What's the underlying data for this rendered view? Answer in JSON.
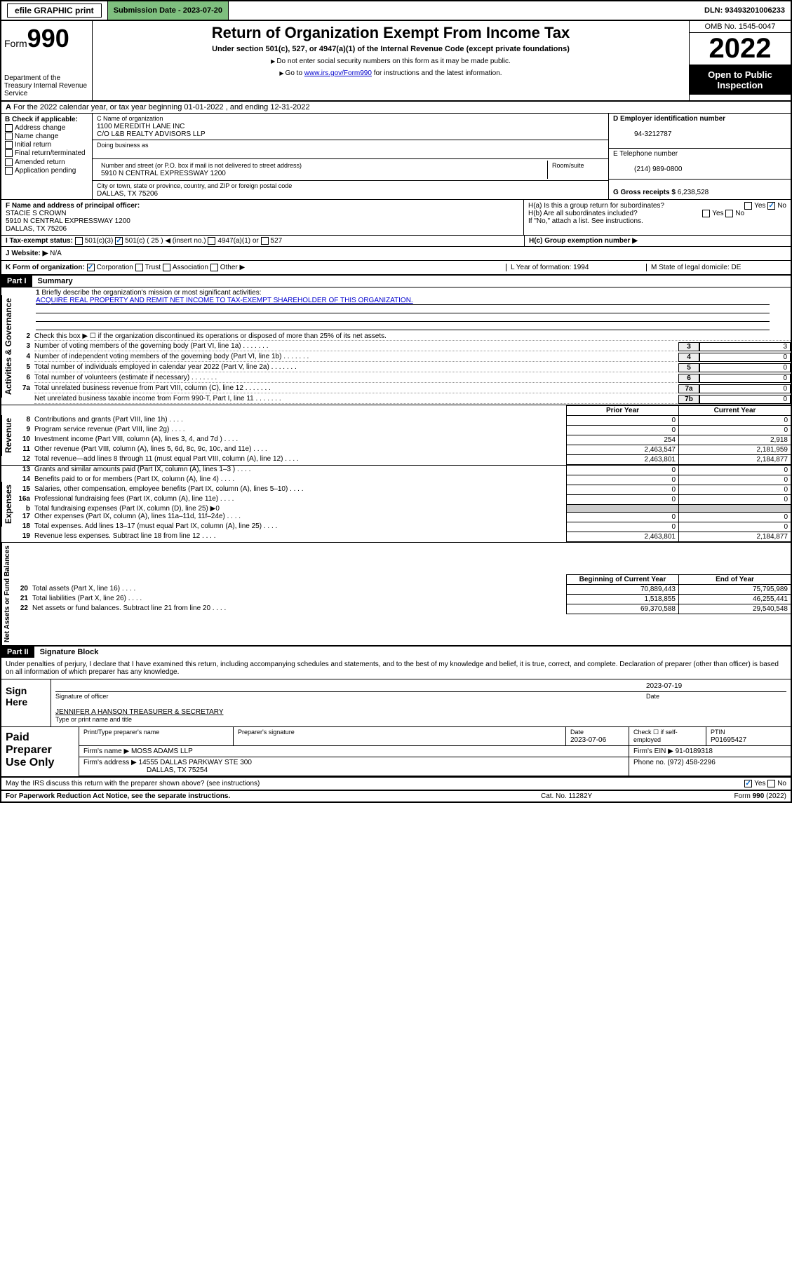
{
  "topbar": {
    "efile": "efile GRAPHIC print",
    "submission": "Submission Date - 2023-07-20",
    "dln": "DLN: 93493201006233"
  },
  "header": {
    "form": "Form",
    "form_num": "990",
    "dept": "Department of the Treasury\nInternal Revenue Service",
    "title": "Return of Organization Exempt From Income Tax",
    "sub": "Under section 501(c), 527, or 4947(a)(1) of the Internal Revenue Code (except private foundations)",
    "note1": "Do not enter social security numbers on this form as it may be made public.",
    "note2_pre": "Go to ",
    "note2_link": "www.irs.gov/Form990",
    "note2_post": " for instructions and the latest information.",
    "omb": "OMB No. 1545-0047",
    "year": "2022",
    "inspect": "Open to Public Inspection"
  },
  "line_a": "For the 2022 calendar year, or tax year beginning 01-01-2022   , and ending 12-31-2022",
  "section_b": {
    "label": "B Check if applicable:",
    "opts": [
      "Address change",
      "Name change",
      "Initial return",
      "Final return/terminated",
      "Amended return",
      "Application pending"
    ]
  },
  "section_c": {
    "name_lbl": "C Name of organization",
    "name1": "1100 MEREDITH LANE INC",
    "name2": "C/O L&B REALTY ADVISORS LLP",
    "dba_lbl": "Doing business as",
    "addr_lbl": "Number and street (or P.O. box if mail is not delivered to street address)",
    "room_lbl": "Room/suite",
    "addr": "5910 N CENTRAL EXPRESSWAY 1200",
    "city_lbl": "City or town, state or province, country, and ZIP or foreign postal code",
    "city": "DALLAS, TX  75206"
  },
  "section_d": {
    "label": "D Employer identification number",
    "val": "94-3212787"
  },
  "section_e": {
    "label": "E Telephone number",
    "val": "(214) 989-0800"
  },
  "section_g": {
    "label": "G Gross receipts $",
    "val": "6,238,528"
  },
  "section_f": {
    "label": "F Name and address of principal officer:",
    "name": "STACIE S CROWN",
    "addr1": "5910 N CENTRAL EXPRESSWAY 1200",
    "addr2": "DALLAS, TX  75206"
  },
  "section_h": {
    "ha": "H(a)  Is this a group return for subordinates?",
    "hb": "H(b)  Are all subordinates included?",
    "hb_note": "If \"No,\" attach a list. See instructions.",
    "hc": "H(c)  Group exemption number ▶",
    "yes": "Yes",
    "no": "No"
  },
  "status": {
    "label": "I   Tax-exempt status:",
    "o1": "501(c)(3)",
    "o2": "501(c) ( 25 ) ◀ (insert no.)",
    "o3": "4947(a)(1) or",
    "o4": "527"
  },
  "website": {
    "label": "J   Website: ▶",
    "val": "N/A"
  },
  "korg": {
    "label": "K Form of organization:",
    "opts": [
      "Corporation",
      "Trust",
      "Association",
      "Other ▶"
    ],
    "l": "L Year of formation: 1994",
    "m": "M State of legal domicile: DE"
  },
  "part1": {
    "hdr": "Part I",
    "title": "Summary",
    "vlab1": "Activities & Governance",
    "vlab2": "Revenue",
    "vlab3": "Expenses",
    "vlab4": "Net Assets or Fund Balances",
    "l1": "Briefly describe the organization's mission or most significant activities:",
    "l1_text": "ACQUIRE REAL PROPERTY AND REMIT NET INCOME TO TAX-EXEMPT SHAREHOLDER OF THIS ORGANIZATION.",
    "l2": "Check this box ▶ ☐ if the organization discontinued its operations or disposed of more than 25% of its net assets.",
    "rows_gov": [
      {
        "n": "3",
        "d": "Number of voting members of the governing body (Part VI, line 1a)",
        "b": "3",
        "v": "3"
      },
      {
        "n": "4",
        "d": "Number of independent voting members of the governing body (Part VI, line 1b)",
        "b": "4",
        "v": "0"
      },
      {
        "n": "5",
        "d": "Total number of individuals employed in calendar year 2022 (Part V, line 2a)",
        "b": "5",
        "v": "0"
      },
      {
        "n": "6",
        "d": "Total number of volunteers (estimate if necessary)",
        "b": "6",
        "v": "0"
      },
      {
        "n": "7a",
        "d": "Total unrelated business revenue from Part VIII, column (C), line 12",
        "b": "7a",
        "v": "0"
      },
      {
        "n": "",
        "d": "Net unrelated business taxable income from Form 990-T, Part I, line 11",
        "b": "7b",
        "v": "0"
      }
    ],
    "col_hdr1": "Prior Year",
    "col_hdr2": "Current Year",
    "rows_rev": [
      {
        "n": "8",
        "d": "Contributions and grants (Part VIII, line 1h)",
        "c1": "0",
        "c2": "0"
      },
      {
        "n": "9",
        "d": "Program service revenue (Part VIII, line 2g)",
        "c1": "0",
        "c2": "0"
      },
      {
        "n": "10",
        "d": "Investment income (Part VIII, column (A), lines 3, 4, and 7d )",
        "c1": "254",
        "c2": "2,918"
      },
      {
        "n": "11",
        "d": "Other revenue (Part VIII, column (A), lines 5, 6d, 8c, 9c, 10c, and 11e)",
        "c1": "2,463,547",
        "c2": "2,181,959"
      },
      {
        "n": "12",
        "d": "Total revenue—add lines 8 through 11 (must equal Part VIII, column (A), line 12)",
        "c1": "2,463,801",
        "c2": "2,184,877"
      }
    ],
    "rows_exp": [
      {
        "n": "13",
        "d": "Grants and similar amounts paid (Part IX, column (A), lines 1–3 )",
        "c1": "0",
        "c2": "0"
      },
      {
        "n": "14",
        "d": "Benefits paid to or for members (Part IX, column (A), line 4)",
        "c1": "0",
        "c2": "0"
      },
      {
        "n": "15",
        "d": "Salaries, other compensation, employee benefits (Part IX, column (A), lines 5–10)",
        "c1": "0",
        "c2": "0"
      },
      {
        "n": "16a",
        "d": "Professional fundraising fees (Part IX, column (A), line 11e)",
        "c1": "0",
        "c2": "0"
      },
      {
        "n": "b",
        "d": "Total fundraising expenses (Part IX, column (D), line 25) ▶0",
        "shade": true
      },
      {
        "n": "17",
        "d": "Other expenses (Part IX, column (A), lines 11a–11d, 11f–24e)",
        "c1": "0",
        "c2": "0"
      },
      {
        "n": "18",
        "d": "Total expenses. Add lines 13–17 (must equal Part IX, column (A), line 25)",
        "c1": "0",
        "c2": "0"
      },
      {
        "n": "19",
        "d": "Revenue less expenses. Subtract line 18 from line 12",
        "c1": "2,463,801",
        "c2": "2,184,877"
      }
    ],
    "col_hdr3": "Beginning of Current Year",
    "col_hdr4": "End of Year",
    "rows_net": [
      {
        "n": "20",
        "d": "Total assets (Part X, line 16)",
        "c1": "70,889,443",
        "c2": "75,795,989"
      },
      {
        "n": "21",
        "d": "Total liabilities (Part X, line 26)",
        "c1": "1,518,855",
        "c2": "46,255,441"
      },
      {
        "n": "22",
        "d": "Net assets or fund balances. Subtract line 21 from line 20",
        "c1": "69,370,588",
        "c2": "29,540,548"
      }
    ]
  },
  "part2": {
    "hdr": "Part II",
    "title": "Signature Block",
    "decl": "Under penalties of perjury, I declare that I have examined this return, including accompanying schedules and statements, and to the best of my knowledge and belief, it is true, correct, and complete. Declaration of preparer (other than officer) is based on all information of which preparer has any knowledge.",
    "sign": "Sign Here",
    "sig_officer": "Signature of officer",
    "sig_date": "2023-07-19",
    "date_lbl": "Date",
    "name_title": "JENNIFER A HANSON  TREASURER & SECRETARY",
    "type_lbl": "Type or print name and title",
    "paid": "Paid Preparer Use Only",
    "p_name_lbl": "Print/Type preparer's name",
    "p_sig_lbl": "Preparer's signature",
    "p_date_lbl": "Date",
    "p_date": "2023-07-06",
    "p_check": "Check ☐ if self-employed",
    "ptin_lbl": "PTIN",
    "ptin": "P01695427",
    "firm_name_lbl": "Firm's name   ▶",
    "firm_name": "MOSS ADAMS LLP",
    "firm_ein_lbl": "Firm's EIN ▶",
    "firm_ein": "91-0189318",
    "firm_addr_lbl": "Firm's address ▶",
    "firm_addr1": "14555 DALLAS PARKWAY STE 300",
    "firm_addr2": "DALLAS, TX  75254",
    "phone_lbl": "Phone no.",
    "phone": "(972) 458-2296",
    "may": "May the IRS discuss this return with the preparer shown above? (see instructions)",
    "yes": "Yes",
    "no": "No"
  },
  "footer": {
    "l": "For Paperwork Reduction Act Notice, see the separate instructions.",
    "m": "Cat. No. 11282Y",
    "r": "Form 990 (2022)"
  }
}
